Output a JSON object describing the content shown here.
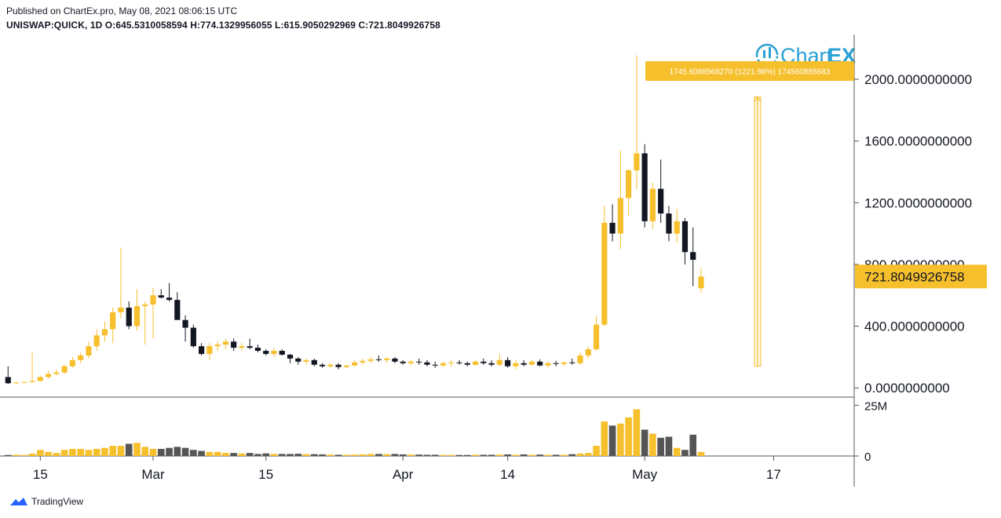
{
  "header": {
    "published": "Published on ChartEx.pro, May 08, 2021 08:06:15 UTC",
    "ohlc": "UNISWAP:QUICK, 1D  O:645.5310058594  H:774.1329956055  L:615.9050292969  C:721.8049926758"
  },
  "logo": {
    "text_a": "Chart",
    "text_b": "EX"
  },
  "footer": {
    "brand": "TradingView"
  },
  "colors": {
    "up": "#f6bf2c",
    "down": "#131722",
    "axis": "#555555",
    "measure": "#f6bf2c",
    "volume_down": "#555555"
  },
  "measure": {
    "label": "1745.6088568270 (1221.98%) 174560885683",
    "from_price": 140,
    "to_price": 1885,
    "date": "2021-05-15"
  },
  "last_price_label": "721.8049926758",
  "last_price": 721.8049926758,
  "chart_data": {
    "type": "candlestick",
    "symbol": "UNISWAP:QUICK",
    "interval": "1D",
    "y_ticks": [
      "0.0000000000",
      "400.0000000000",
      "800.0000000000",
      "1200.0000000000",
      "1600.0000000000",
      "2000.0000000000"
    ],
    "y_tick_values": [
      0,
      400,
      800,
      1200,
      1600,
      2000
    ],
    "ylim": [
      -60,
      2290
    ],
    "volume_ticks": [
      "0",
      "25M"
    ],
    "volume_tick_values": [
      0,
      25
    ],
    "volume_unit": "M",
    "x_ticks": [
      {
        "label": "15",
        "date": "2021-02-15"
      },
      {
        "label": "Mar",
        "date": "2021-03-01"
      },
      {
        "label": "15",
        "date": "2021-03-15"
      },
      {
        "label": "Apr",
        "date": "2021-04-01"
      },
      {
        "label": "14",
        "date": "2021-04-14"
      },
      {
        "label": "May",
        "date": "2021-05-01"
      },
      {
        "label": "17",
        "date": "2021-05-17"
      }
    ],
    "xlim": [
      "2021-02-10",
      "2021-05-27"
    ],
    "candles": [
      {
        "date": "2021-02-11",
        "o": 70,
        "h": 140,
        "l": 25,
        "c": 30,
        "v": 0.5
      },
      {
        "date": "2021-02-12",
        "o": 30,
        "h": 40,
        "l": 25,
        "c": 35,
        "v": 0.6
      },
      {
        "date": "2021-02-13",
        "o": 35,
        "h": 40,
        "l": 30,
        "c": 38,
        "v": 0.5
      },
      {
        "date": "2021-02-14",
        "o": 38,
        "h": 230,
        "l": 35,
        "c": 45,
        "v": 1.2
      },
      {
        "date": "2021-02-15",
        "o": 45,
        "h": 80,
        "l": 40,
        "c": 70,
        "v": 3.0
      },
      {
        "date": "2021-02-16",
        "o": 70,
        "h": 110,
        "l": 60,
        "c": 90,
        "v": 2.0
      },
      {
        "date": "2021-02-17",
        "o": 90,
        "h": 120,
        "l": 80,
        "c": 100,
        "v": 1.5
      },
      {
        "date": "2021-02-18",
        "o": 100,
        "h": 150,
        "l": 90,
        "c": 140,
        "v": 3.0
      },
      {
        "date": "2021-02-19",
        "o": 140,
        "h": 200,
        "l": 130,
        "c": 180,
        "v": 3.5
      },
      {
        "date": "2021-02-20",
        "o": 180,
        "h": 230,
        "l": 160,
        "c": 210,
        "v": 3.5
      },
      {
        "date": "2021-02-21",
        "o": 210,
        "h": 300,
        "l": 190,
        "c": 270,
        "v": 3.0
      },
      {
        "date": "2021-02-22",
        "o": 270,
        "h": 380,
        "l": 240,
        "c": 340,
        "v": 3.5
      },
      {
        "date": "2021-02-23",
        "o": 340,
        "h": 430,
        "l": 300,
        "c": 380,
        "v": 4.0
      },
      {
        "date": "2021-02-24",
        "o": 380,
        "h": 520,
        "l": 290,
        "c": 490,
        "v": 5.0
      },
      {
        "date": "2021-02-25",
        "o": 490,
        "h": 910,
        "l": 450,
        "c": 520,
        "v": 5.0
      },
      {
        "date": "2021-02-26",
        "o": 520,
        "h": 560,
        "l": 380,
        "c": 400,
        "v": 6.0
      },
      {
        "date": "2021-02-27",
        "o": 400,
        "h": 640,
        "l": 370,
        "c": 530,
        "v": 6.5
      },
      {
        "date": "2021-02-28",
        "o": 530,
        "h": 560,
        "l": 280,
        "c": 540,
        "v": 4.5
      },
      {
        "date": "2021-03-01",
        "o": 540,
        "h": 650,
        "l": 320,
        "c": 600,
        "v": 3.5
      },
      {
        "date": "2021-03-02",
        "o": 600,
        "h": 640,
        "l": 580,
        "c": 585,
        "v": 3.5
      },
      {
        "date": "2021-03-03",
        "o": 585,
        "h": 680,
        "l": 560,
        "c": 570,
        "v": 4.0
      },
      {
        "date": "2021-03-04",
        "o": 570,
        "h": 620,
        "l": 450,
        "c": 440,
        "v": 4.5
      },
      {
        "date": "2021-03-05",
        "o": 440,
        "h": 470,
        "l": 300,
        "c": 390,
        "v": 4.0
      },
      {
        "date": "2021-03-06",
        "o": 390,
        "h": 410,
        "l": 260,
        "c": 270,
        "v": 3.0
      },
      {
        "date": "2021-03-07",
        "o": 270,
        "h": 290,
        "l": 210,
        "c": 220,
        "v": 2.5
      },
      {
        "date": "2021-03-08",
        "o": 220,
        "h": 290,
        "l": 180,
        "c": 270,
        "v": 2.0
      },
      {
        "date": "2021-03-09",
        "o": 270,
        "h": 300,
        "l": 240,
        "c": 280,
        "v": 2.0
      },
      {
        "date": "2021-03-10",
        "o": 280,
        "h": 320,
        "l": 250,
        "c": 300,
        "v": 1.5
      },
      {
        "date": "2021-03-11",
        "o": 300,
        "h": 320,
        "l": 240,
        "c": 260,
        "v": 1.5
      },
      {
        "date": "2021-03-12",
        "o": 260,
        "h": 290,
        "l": 240,
        "c": 270,
        "v": 1.2
      },
      {
        "date": "2021-03-13",
        "o": 270,
        "h": 320,
        "l": 250,
        "c": 260,
        "v": 1.5
      },
      {
        "date": "2021-03-14",
        "o": 260,
        "h": 280,
        "l": 230,
        "c": 240,
        "v": 1.0
      },
      {
        "date": "2021-03-15",
        "o": 240,
        "h": 250,
        "l": 210,
        "c": 220,
        "v": 1.3
      },
      {
        "date": "2021-03-16",
        "o": 220,
        "h": 260,
        "l": 200,
        "c": 240,
        "v": 1.0
      },
      {
        "date": "2021-03-17",
        "o": 240,
        "h": 250,
        "l": 210,
        "c": 215,
        "v": 1.0
      },
      {
        "date": "2021-03-18",
        "o": 215,
        "h": 220,
        "l": 160,
        "c": 190,
        "v": 1.0
      },
      {
        "date": "2021-03-19",
        "o": 190,
        "h": 200,
        "l": 150,
        "c": 170,
        "v": 1.1
      },
      {
        "date": "2021-03-20",
        "o": 170,
        "h": 190,
        "l": 150,
        "c": 180,
        "v": 0.9
      },
      {
        "date": "2021-03-21",
        "o": 180,
        "h": 190,
        "l": 140,
        "c": 150,
        "v": 0.9
      },
      {
        "date": "2021-03-22",
        "o": 150,
        "h": 160,
        "l": 130,
        "c": 140,
        "v": 0.8
      },
      {
        "date": "2021-03-23",
        "o": 140,
        "h": 160,
        "l": 130,
        "c": 150,
        "v": 0.7
      },
      {
        "date": "2021-03-24",
        "o": 150,
        "h": 160,
        "l": 120,
        "c": 135,
        "v": 0.6
      },
      {
        "date": "2021-03-25",
        "o": 135,
        "h": 150,
        "l": 130,
        "c": 145,
        "v": 0.6
      },
      {
        "date": "2021-03-26",
        "o": 145,
        "h": 180,
        "l": 140,
        "c": 165,
        "v": 0.7
      },
      {
        "date": "2021-03-27",
        "o": 165,
        "h": 190,
        "l": 150,
        "c": 175,
        "v": 0.8
      },
      {
        "date": "2021-03-28",
        "o": 175,
        "h": 200,
        "l": 160,
        "c": 185,
        "v": 1.0
      },
      {
        "date": "2021-03-29",
        "o": 185,
        "h": 210,
        "l": 170,
        "c": 180,
        "v": 1.0
      },
      {
        "date": "2021-03-30",
        "o": 180,
        "h": 200,
        "l": 160,
        "c": 190,
        "v": 0.9
      },
      {
        "date": "2021-03-31",
        "o": 190,
        "h": 200,
        "l": 160,
        "c": 170,
        "v": 1.0
      },
      {
        "date": "2021-04-01",
        "o": 170,
        "h": 180,
        "l": 150,
        "c": 160,
        "v": 0.8
      },
      {
        "date": "2021-04-02",
        "o": 160,
        "h": 180,
        "l": 145,
        "c": 170,
        "v": 0.7
      },
      {
        "date": "2021-04-03",
        "o": 170,
        "h": 190,
        "l": 150,
        "c": 165,
        "v": 0.7
      },
      {
        "date": "2021-04-04",
        "o": 165,
        "h": 180,
        "l": 140,
        "c": 150,
        "v": 0.6
      },
      {
        "date": "2021-04-05",
        "o": 150,
        "h": 170,
        "l": 130,
        "c": 145,
        "v": 0.6
      },
      {
        "date": "2021-04-06",
        "o": 145,
        "h": 170,
        "l": 135,
        "c": 160,
        "v": 0.5
      },
      {
        "date": "2021-04-07",
        "o": 160,
        "h": 180,
        "l": 140,
        "c": 165,
        "v": 0.5
      },
      {
        "date": "2021-04-08",
        "o": 165,
        "h": 180,
        "l": 150,
        "c": 160,
        "v": 0.5
      },
      {
        "date": "2021-04-09",
        "o": 160,
        "h": 170,
        "l": 140,
        "c": 150,
        "v": 0.5
      },
      {
        "date": "2021-04-10",
        "o": 150,
        "h": 180,
        "l": 145,
        "c": 170,
        "v": 0.6
      },
      {
        "date": "2021-04-11",
        "o": 170,
        "h": 190,
        "l": 150,
        "c": 160,
        "v": 0.6
      },
      {
        "date": "2021-04-12",
        "o": 160,
        "h": 180,
        "l": 140,
        "c": 150,
        "v": 0.6
      },
      {
        "date": "2021-04-13",
        "o": 150,
        "h": 220,
        "l": 140,
        "c": 180,
        "v": 0.7
      },
      {
        "date": "2021-04-14",
        "o": 180,
        "h": 200,
        "l": 130,
        "c": 140,
        "v": 0.8
      },
      {
        "date": "2021-04-15",
        "o": 140,
        "h": 180,
        "l": 120,
        "c": 160,
        "v": 0.6
      },
      {
        "date": "2021-04-16",
        "o": 160,
        "h": 180,
        "l": 140,
        "c": 150,
        "v": 0.8
      },
      {
        "date": "2021-04-17",
        "o": 150,
        "h": 180,
        "l": 145,
        "c": 170,
        "v": 0.6
      },
      {
        "date": "2021-04-18",
        "o": 170,
        "h": 185,
        "l": 140,
        "c": 145,
        "v": 0.7
      },
      {
        "date": "2021-04-19",
        "o": 145,
        "h": 170,
        "l": 130,
        "c": 160,
        "v": 0.6
      },
      {
        "date": "2021-04-20",
        "o": 160,
        "h": 175,
        "l": 140,
        "c": 155,
        "v": 0.6
      },
      {
        "date": "2021-04-21",
        "o": 155,
        "h": 170,
        "l": 140,
        "c": 165,
        "v": 0.6
      },
      {
        "date": "2021-04-22",
        "o": 165,
        "h": 190,
        "l": 150,
        "c": 160,
        "v": 0.9
      },
      {
        "date": "2021-04-23",
        "o": 160,
        "h": 230,
        "l": 150,
        "c": 210,
        "v": 1.2
      },
      {
        "date": "2021-04-24",
        "o": 210,
        "h": 270,
        "l": 190,
        "c": 250,
        "v": 1.5
      },
      {
        "date": "2021-04-25",
        "o": 250,
        "h": 470,
        "l": 240,
        "c": 410,
        "v": 5.0
      },
      {
        "date": "2021-04-26",
        "o": 410,
        "h": 1180,
        "l": 400,
        "c": 1070,
        "v": 17.0
      },
      {
        "date": "2021-04-27",
        "o": 1070,
        "h": 1190,
        "l": 950,
        "c": 1000,
        "v": 15.0
      },
      {
        "date": "2021-04-28",
        "o": 1000,
        "h": 1540,
        "l": 900,
        "c": 1230,
        "v": 16.0
      },
      {
        "date": "2021-04-29",
        "o": 1230,
        "h": 1420,
        "l": 1110,
        "c": 1410,
        "v": 19.0
      },
      {
        "date": "2021-04-30",
        "o": 1410,
        "h": 2155,
        "l": 1290,
        "c": 1520,
        "v": 23.0
      },
      {
        "date": "2021-05-01",
        "o": 1520,
        "h": 1580,
        "l": 1040,
        "c": 1080,
        "v": 13.0
      },
      {
        "date": "2021-05-02",
        "o": 1080,
        "h": 1330,
        "l": 1030,
        "c": 1290,
        "v": 11.0
      },
      {
        "date": "2021-05-03",
        "o": 1290,
        "h": 1480,
        "l": 1070,
        "c": 1130,
        "v": 9.0
      },
      {
        "date": "2021-05-04",
        "o": 1130,
        "h": 1180,
        "l": 950,
        "c": 1000,
        "v": 9.5
      },
      {
        "date": "2021-05-05",
        "o": 1000,
        "h": 1160,
        "l": 940,
        "c": 1080,
        "v": 4.0
      },
      {
        "date": "2021-05-06",
        "o": 1080,
        "h": 1100,
        "l": 800,
        "c": 880,
        "v": 3.0
      },
      {
        "date": "2021-05-07",
        "o": 880,
        "h": 1040,
        "l": 660,
        "c": 830,
        "v": 10.5
      },
      {
        "date": "2021-05-08",
        "o": 645.5310058594,
        "h": 774.1329956055,
        "l": 615.9050292969,
        "c": 721.8049926758,
        "v": 2.0
      }
    ]
  }
}
